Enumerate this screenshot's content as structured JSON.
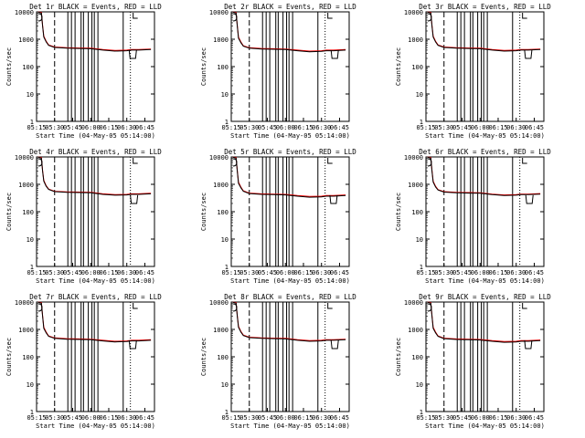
{
  "figure": {
    "background": "#ffffff",
    "axis_color": "#000000",
    "events_color": "#000000",
    "lld_color": "#ff0000"
  },
  "chart_data": [
    {
      "type": "line",
      "title": "Det 1r BLACK = Events, RED = LLD",
      "xlabel": "Start Time (04-May-05 05:14:00)",
      "ylabel": "Counts/sec",
      "yscale": "log",
      "ylim": [
        1,
        10000
      ],
      "xlim": [
        "05:15",
        "06:53"
      ],
      "xticks": [
        "05:15",
        "05:30",
        "05:45",
        "06:00",
        "06:15",
        "06:30",
        "06:45"
      ],
      "yticks": [
        "1",
        "10",
        "100",
        "1000",
        "10000"
      ],
      "grid": false,
      "dip": "06:35",
      "series": [
        {
          "name": "Events",
          "color": "#000000",
          "x": [
            "05:16",
            "05:19",
            "05:20",
            "05:21",
            "05:23",
            "05:25",
            "05:30",
            "05:40",
            "05:50",
            "06:00",
            "06:10",
            "06:20",
            "06:30",
            "06:34",
            "06:40",
            "06:50"
          ],
          "y": [
            10000,
            9000,
            3000,
            1200,
            800,
            600,
            500,
            470,
            460,
            450,
            400,
            370,
            380,
            400,
            400,
            420
          ]
        },
        {
          "name": "LLD",
          "color": "#ff0000",
          "x": [
            "05:16",
            "05:19",
            "05:20",
            "05:21",
            "05:23",
            "05:25",
            "05:30",
            "05:40",
            "05:50",
            "06:00",
            "06:10",
            "06:20",
            "06:30",
            "06:34",
            "06:40",
            "06:50"
          ],
          "y": [
            10000,
            9500,
            3200,
            1300,
            850,
            620,
            520,
            490,
            480,
            470,
            420,
            390,
            400,
            420,
            420,
            440
          ]
        }
      ]
    },
    {
      "type": "line",
      "title": "Det 2r BLACK = Events, RED = LLD",
      "xlabel": "Start Time (04-May-05 05:14:00)",
      "ylabel": "Counts/sec",
      "yscale": "log",
      "ylim": [
        1,
        10000
      ],
      "xlim": [
        "05:15",
        "06:53"
      ],
      "xticks": [
        "05:15",
        "05:30",
        "05:45",
        "06:00",
        "06:15",
        "06:30",
        "06:45"
      ],
      "yticks": [
        "1",
        "10",
        "100",
        "1000",
        "10000"
      ],
      "grid": false,
      "dip": "06:41",
      "series": [
        {
          "name": "Events",
          "color": "#000000",
          "x": [
            "05:16",
            "05:19",
            "05:20",
            "05:21",
            "05:23",
            "05:25",
            "05:30",
            "05:40",
            "05:50",
            "06:00",
            "06:10",
            "06:20",
            "06:30",
            "06:34",
            "06:40",
            "06:50"
          ],
          "y": [
            10000,
            9000,
            3000,
            1100,
            750,
            560,
            470,
            440,
            430,
            420,
            380,
            350,
            360,
            380,
            380,
            400
          ]
        },
        {
          "name": "LLD",
          "color": "#ff0000",
          "x": [
            "05:16",
            "05:19",
            "05:20",
            "05:21",
            "05:23",
            "05:25",
            "05:30",
            "05:40",
            "05:50",
            "06:00",
            "06:10",
            "06:20",
            "06:30",
            "06:34",
            "06:40",
            "06:50"
          ],
          "y": [
            10000,
            9500,
            3200,
            1200,
            800,
            580,
            490,
            460,
            450,
            440,
            400,
            370,
            380,
            400,
            400,
            420
          ]
        }
      ]
    },
    {
      "type": "line",
      "title": "Det 3r BLACK = Events, RED = LLD",
      "xlabel": "Start Time (04-May-05 05:14:00)",
      "ylabel": "Counts/sec",
      "yscale": "log",
      "ylim": [
        1,
        10000
      ],
      "xlim": [
        "05:15",
        "06:53"
      ],
      "xticks": [
        "05:15",
        "05:30",
        "05:45",
        "06:00",
        "06:15",
        "06:30",
        "06:45"
      ],
      "yticks": [
        "1",
        "10",
        "100",
        "1000",
        "10000"
      ],
      "grid": false,
      "dip": "06:40",
      "series": [
        {
          "name": "Events",
          "color": "#000000",
          "x": [
            "05:16",
            "05:19",
            "05:20",
            "05:21",
            "05:23",
            "05:25",
            "05:30",
            "05:40",
            "05:50",
            "06:00",
            "06:10",
            "06:20",
            "06:30",
            "06:34",
            "06:40",
            "06:50"
          ],
          "y": [
            10000,
            9000,
            3000,
            1200,
            800,
            600,
            500,
            470,
            460,
            450,
            400,
            370,
            380,
            400,
            400,
            420
          ]
        },
        {
          "name": "LLD",
          "color": "#ff0000",
          "x": [
            "05:16",
            "05:19",
            "05:20",
            "05:21",
            "05:23",
            "05:25",
            "05:30",
            "05:40",
            "05:50",
            "06:00",
            "06:10",
            "06:20",
            "06:30",
            "06:34",
            "06:40",
            "06:50"
          ],
          "y": [
            10000,
            9500,
            3200,
            1300,
            850,
            620,
            520,
            490,
            480,
            470,
            420,
            390,
            400,
            420,
            420,
            440
          ]
        }
      ]
    },
    {
      "type": "line",
      "title": "Det 4r BLACK = Events, RED = LLD",
      "xlabel": "Start Time (04-May-05 05:14:00)",
      "ylabel": "Counts/sec",
      "yscale": "log",
      "ylim": [
        1,
        10000
      ],
      "xlim": [
        "05:15",
        "06:53"
      ],
      "xticks": [
        "05:15",
        "05:30",
        "05:45",
        "06:00",
        "06:15",
        "06:30",
        "06:45"
      ],
      "yticks": [
        "1",
        "10",
        "100",
        "1000",
        "10000"
      ],
      "grid": false,
      "dip": "06:36",
      "series": [
        {
          "name": "Events",
          "color": "#000000",
          "x": [
            "05:16",
            "05:19",
            "05:20",
            "05:21",
            "05:23",
            "05:25",
            "05:30",
            "05:40",
            "05:50",
            "06:00",
            "06:10",
            "06:20",
            "06:30",
            "06:34",
            "06:40",
            "06:50"
          ],
          "y": [
            10000,
            9000,
            3000,
            1300,
            850,
            650,
            540,
            510,
            500,
            490,
            430,
            400,
            410,
            430,
            430,
            450
          ]
        },
        {
          "name": "LLD",
          "color": "#ff0000",
          "x": [
            "05:16",
            "05:19",
            "05:20",
            "05:21",
            "05:23",
            "05:25",
            "05:30",
            "05:40",
            "05:50",
            "06:00",
            "06:10",
            "06:20",
            "06:30",
            "06:34",
            "06:40",
            "06:50"
          ],
          "y": [
            10000,
            9500,
            3200,
            1400,
            900,
            670,
            560,
            530,
            520,
            510,
            450,
            420,
            430,
            450,
            450,
            470
          ]
        }
      ]
    },
    {
      "type": "line",
      "title": "Det 5r BLACK = Events, RED = LLD",
      "xlabel": "Start Time (04-May-05 05:14:00)",
      "ylabel": "Counts/sec",
      "yscale": "log",
      "ylim": [
        1,
        10000
      ],
      "xlim": [
        "05:15",
        "06:53"
      ],
      "xticks": [
        "05:15",
        "05:30",
        "05:45",
        "06:00",
        "06:15",
        "06:30",
        "06:45"
      ],
      "yticks": [
        "1",
        "10",
        "100",
        "1000",
        "10000"
      ],
      "grid": false,
      "dip": "06:40",
      "series": [
        {
          "name": "Events",
          "color": "#000000",
          "x": [
            "05:16",
            "05:19",
            "05:20",
            "05:21",
            "05:23",
            "05:25",
            "05:30",
            "05:40",
            "05:50",
            "06:00",
            "06:10",
            "06:20",
            "06:30",
            "06:34",
            "06:40",
            "06:50"
          ],
          "y": [
            10000,
            9000,
            3000,
            1100,
            750,
            560,
            460,
            430,
            420,
            410,
            370,
            340,
            350,
            370,
            370,
            390
          ]
        },
        {
          "name": "LLD",
          "color": "#ff0000",
          "x": [
            "05:16",
            "05:19",
            "05:20",
            "05:21",
            "05:23",
            "05:25",
            "05:30",
            "05:40",
            "05:50",
            "06:00",
            "06:10",
            "06:20",
            "06:30",
            "06:34",
            "06:40",
            "06:50"
          ],
          "y": [
            10000,
            9500,
            3200,
            1200,
            800,
            580,
            480,
            450,
            440,
            430,
            390,
            360,
            370,
            390,
            390,
            410
          ]
        }
      ]
    },
    {
      "type": "line",
      "title": "Det 6r BLACK = Events, RED = LLD",
      "xlabel": "Start Time (04-May-05 05:14:00)",
      "ylabel": "Counts/sec",
      "yscale": "log",
      "ylim": [
        1,
        10000
      ],
      "xlim": [
        "05:15",
        "06:53"
      ],
      "xticks": [
        "05:15",
        "05:30",
        "05:45",
        "06:00",
        "06:15",
        "06:30",
        "06:45"
      ],
      "yticks": [
        "1",
        "10",
        "100",
        "1000",
        "10000"
      ],
      "grid": false,
      "dip": "06:41",
      "series": [
        {
          "name": "Events",
          "color": "#000000",
          "x": [
            "05:16",
            "05:19",
            "05:20",
            "05:21",
            "05:23",
            "05:25",
            "05:30",
            "05:40",
            "05:50",
            "06:00",
            "06:10",
            "06:20",
            "06:30",
            "06:34",
            "06:40",
            "06:50"
          ],
          "y": [
            10000,
            9000,
            3000,
            1200,
            800,
            620,
            520,
            490,
            480,
            470,
            420,
            390,
            400,
            420,
            420,
            440
          ]
        },
        {
          "name": "LLD",
          "color": "#ff0000",
          "x": [
            "05:16",
            "05:19",
            "05:20",
            "05:21",
            "05:23",
            "05:25",
            "05:30",
            "05:40",
            "05:50",
            "06:00",
            "06:10",
            "06:20",
            "06:30",
            "06:34",
            "06:40",
            "06:50"
          ],
          "y": [
            10000,
            9500,
            3200,
            1300,
            850,
            640,
            540,
            510,
            500,
            490,
            440,
            410,
            420,
            440,
            440,
            460
          ]
        }
      ]
    },
    {
      "type": "line",
      "title": "Det 7r BLACK = Events, RED = LLD",
      "xlabel": "Start Time (04-May-05 05:14:00)",
      "ylabel": "Counts/sec",
      "yscale": "log",
      "ylim": [
        1,
        10000
      ],
      "xlim": [
        "05:15",
        "06:53"
      ],
      "xticks": [
        "05:15",
        "05:30",
        "05:45",
        "06:00",
        "06:15",
        "06:30",
        "06:45"
      ],
      "yticks": [
        "1",
        "10",
        "100",
        "1000",
        "10000"
      ],
      "grid": false,
      "dip": "06:35",
      "series": [
        {
          "name": "Events",
          "color": "#000000",
          "x": [
            "05:16",
            "05:19",
            "05:20",
            "05:21",
            "05:23",
            "05:25",
            "05:30",
            "05:40",
            "05:50",
            "06:00",
            "06:10",
            "06:20",
            "06:30",
            "06:34",
            "06:40",
            "06:50"
          ],
          "y": [
            10000,
            9000,
            3000,
            1100,
            750,
            560,
            470,
            440,
            430,
            420,
            380,
            350,
            360,
            380,
            380,
            400
          ]
        },
        {
          "name": "LLD",
          "color": "#ff0000",
          "x": [
            "05:16",
            "05:19",
            "05:20",
            "05:21",
            "05:23",
            "05:25",
            "05:30",
            "05:40",
            "05:50",
            "06:00",
            "06:10",
            "06:20",
            "06:30",
            "06:34",
            "06:40",
            "06:50"
          ],
          "y": [
            10000,
            9500,
            3200,
            1200,
            800,
            580,
            490,
            460,
            450,
            440,
            400,
            370,
            380,
            400,
            400,
            420
          ]
        }
      ]
    },
    {
      "type": "line",
      "title": "Det 8r BLACK = Events, RED = LLD",
      "xlabel": "Start Time (04-May-05 05:14:00)",
      "ylabel": "Counts/sec",
      "yscale": "log",
      "ylim": [
        1,
        10000
      ],
      "xlim": [
        "05:15",
        "06:53"
      ],
      "xticks": [
        "05:15",
        "05:30",
        "05:45",
        "06:00",
        "06:15",
        "06:30",
        "06:45"
      ],
      "yticks": [
        "1",
        "10",
        "100",
        "1000",
        "10000"
      ],
      "grid": false,
      "dip": "06:41",
      "series": [
        {
          "name": "Events",
          "color": "#000000",
          "x": [
            "05:16",
            "05:19",
            "05:20",
            "05:21",
            "05:23",
            "05:25",
            "05:30",
            "05:40",
            "05:50",
            "06:00",
            "06:10",
            "06:20",
            "06:30",
            "06:34",
            "06:40",
            "06:50"
          ],
          "y": [
            10000,
            9000,
            3000,
            1200,
            800,
            600,
            500,
            470,
            460,
            450,
            400,
            370,
            380,
            400,
            400,
            420
          ]
        },
        {
          "name": "LLD",
          "color": "#ff0000",
          "x": [
            "05:16",
            "05:19",
            "05:20",
            "05:21",
            "05:23",
            "05:25",
            "05:30",
            "05:40",
            "05:50",
            "06:00",
            "06:10",
            "06:20",
            "06:30",
            "06:34",
            "06:40",
            "06:50"
          ],
          "y": [
            10000,
            9500,
            3200,
            1300,
            850,
            620,
            520,
            490,
            480,
            470,
            420,
            390,
            400,
            420,
            420,
            440
          ]
        }
      ]
    },
    {
      "type": "line",
      "title": "Det 9r BLACK = Events, RED = LLD",
      "xlabel": "Start Time (04-May-05 05:14:00)",
      "ylabel": "Counts/sec",
      "yscale": "log",
      "ylim": [
        1,
        10000
      ],
      "xlim": [
        "05:15",
        "06:53"
      ],
      "xticks": [
        "05:15",
        "05:30",
        "05:45",
        "06:00",
        "06:15",
        "06:30",
        "06:45"
      ],
      "yticks": [
        "1",
        "10",
        "100",
        "1000",
        "10000"
      ],
      "grid": false,
      "dip": "06:40",
      "series": [
        {
          "name": "Events",
          "color": "#000000",
          "x": [
            "05:16",
            "05:19",
            "05:20",
            "05:21",
            "05:23",
            "05:25",
            "05:30",
            "05:40",
            "05:50",
            "06:00",
            "06:10",
            "06:20",
            "06:30",
            "06:34",
            "06:40",
            "06:50"
          ],
          "y": [
            10000,
            9000,
            3000,
            1100,
            750,
            560,
            460,
            430,
            420,
            410,
            370,
            340,
            350,
            370,
            370,
            390
          ]
        },
        {
          "name": "LLD",
          "color": "#ff0000",
          "x": [
            "05:16",
            "05:19",
            "05:20",
            "05:21",
            "05:23",
            "05:25",
            "05:30",
            "05:40",
            "05:50",
            "06:00",
            "06:10",
            "06:20",
            "06:30",
            "06:34",
            "06:40",
            "06:50"
          ],
          "y": [
            10000,
            9500,
            3200,
            1200,
            800,
            580,
            480,
            450,
            440,
            430,
            390,
            360,
            370,
            390,
            390,
            410
          ]
        }
      ]
    }
  ],
  "annotations": {
    "dashed_line_time": "05:30",
    "solid_lines": [
      "05:41",
      "05:44",
      "05:47",
      "05:52",
      "05:54",
      "05:58",
      "06:01",
      "06:03",
      "06:06",
      "06:27"
    ],
    "dotted_line_time": "06:33"
  }
}
